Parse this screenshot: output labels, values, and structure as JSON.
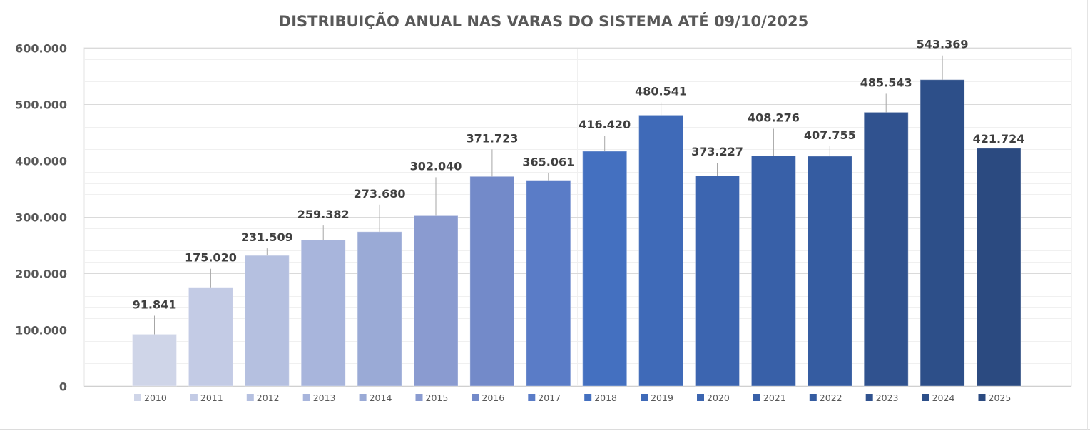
{
  "chart_data": {
    "type": "bar",
    "title": "DISTRIBUIÇÃO ANUAL NAS VARAS DO SISTEMA ATÉ 09/10/2025",
    "xlabel": "",
    "ylabel": "",
    "ylim": [
      0,
      600000
    ],
    "yticks": [
      0,
      100000,
      200000,
      300000,
      400000,
      500000,
      600000
    ],
    "ytick_labels": [
      "0",
      "100.000",
      "200.000",
      "300.000",
      "400.000",
      "500.000",
      "600.000"
    ],
    "minor_grid_step": 20000,
    "grid": true,
    "legend_position": "bottom",
    "categories": [
      "2010",
      "2011",
      "2012",
      "2013",
      "2014",
      "2015",
      "2016",
      "2017",
      "2018",
      "2019",
      "2020",
      "2021",
      "2022",
      "2023",
      "2024",
      "2025"
    ],
    "values": [
      91841,
      175020,
      231509,
      259382,
      273680,
      302040,
      371723,
      365061,
      416420,
      480541,
      373227,
      408276,
      407755,
      485543,
      543369,
      421724
    ],
    "data_labels": [
      "91.841",
      "175.020",
      "231.509",
      "259.382",
      "273.680",
      "302.040",
      "371.723",
      "365.061",
      "416.420",
      "480.541",
      "373.227",
      "408.276",
      "407.755",
      "485.543",
      "543.369",
      "421.724"
    ],
    "colors": [
      "#cfd5e8",
      "#c3cbe5",
      "#b5c0e0",
      "#a8b5dc",
      "#9aaad6",
      "#8a9bd0",
      "#738ac9",
      "#5a7cc7",
      "#4470c0",
      "#3f6ab8",
      "#3c65b0",
      "#3860a8",
      "#355ca1",
      "#30528f",
      "#2d4f89",
      "#2b4a80"
    ],
    "label_offsets": [
      28,
      28,
      12,
      22,
      40,
      56,
      40,
      12,
      24,
      20,
      20,
      40,
      16,
      28,
      36,
      0
    ]
  }
}
